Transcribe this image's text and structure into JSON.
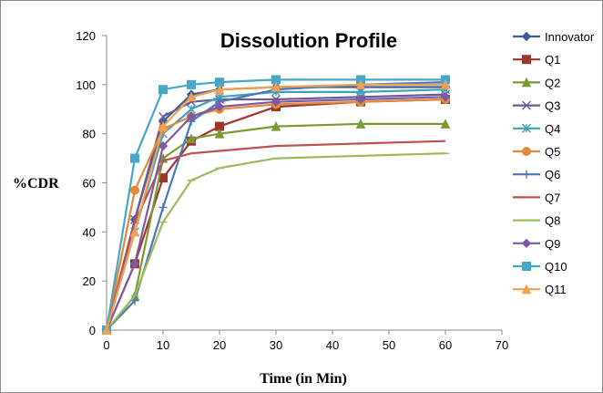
{
  "chart_data": {
    "type": "line",
    "title": "Dissolution Profile",
    "xlabel": "Time (in Min)",
    "ylabel": "%CDR",
    "xlim": [
      0,
      70
    ],
    "ylim": [
      0,
      120
    ],
    "xticks": [
      0,
      10,
      20,
      30,
      40,
      50,
      60,
      70
    ],
    "yticks": [
      0,
      20,
      40,
      60,
      80,
      100,
      120
    ],
    "grid": false,
    "legend_position": "right",
    "x": [
      0,
      5,
      10,
      15,
      20,
      30,
      45,
      60
    ],
    "series": [
      {
        "name": "Innovator",
        "color": "#3a5f9a",
        "marker": "diamond",
        "values": [
          0,
          45,
          85,
          96,
          98,
          99,
          99,
          99
        ]
      },
      {
        "name": "Q1",
        "color": "#a0352e",
        "marker": "square",
        "values": [
          0,
          27,
          62,
          77,
          83,
          91,
          93,
          94
        ]
      },
      {
        "name": "Q2",
        "color": "#7a9a35",
        "marker": "triangle",
        "values": [
          0,
          14,
          70,
          78,
          80,
          83,
          84,
          84
        ]
      },
      {
        "name": "Q3",
        "color": "#6a5a94",
        "marker": "x",
        "values": [
          0,
          45,
          87,
          93,
          94,
          94,
          95,
          96
        ]
      },
      {
        "name": "Q4",
        "color": "#3fa2b8",
        "marker": "star",
        "values": [
          0,
          40,
          80,
          90,
          95,
          97,
          97,
          98
        ]
      },
      {
        "name": "Q5",
        "color": "#e28a35",
        "marker": "circle",
        "values": [
          0,
          57,
          82,
          87,
          90,
          92,
          93,
          94
        ]
      },
      {
        "name": "Q6",
        "color": "#4a78c0",
        "marker": "plus",
        "values": [
          0,
          12,
          50,
          85,
          93,
          98,
          100,
          101
        ]
      },
      {
        "name": "Q7",
        "color": "#c0504d",
        "marker": "none",
        "values": [
          0,
          44,
          69,
          72,
          73,
          75,
          76,
          77
        ]
      },
      {
        "name": "Q8",
        "color": "#9bbb59",
        "marker": "dash",
        "values": [
          0,
          14,
          44,
          61,
          66,
          70,
          71,
          72
        ]
      },
      {
        "name": "Q9",
        "color": "#7f5aa0",
        "marker": "diamond",
        "values": [
          0,
          27,
          75,
          87,
          91,
          93,
          94,
          95
        ]
      },
      {
        "name": "Q10",
        "color": "#46a7c8",
        "marker": "square",
        "values": [
          0,
          70,
          98,
          100,
          101,
          102,
          102,
          102
        ]
      },
      {
        "name": "Q11",
        "color": "#f0a050",
        "marker": "triangle",
        "values": [
          0,
          40,
          83,
          95,
          98,
          99,
          100,
          100
        ]
      }
    ]
  }
}
